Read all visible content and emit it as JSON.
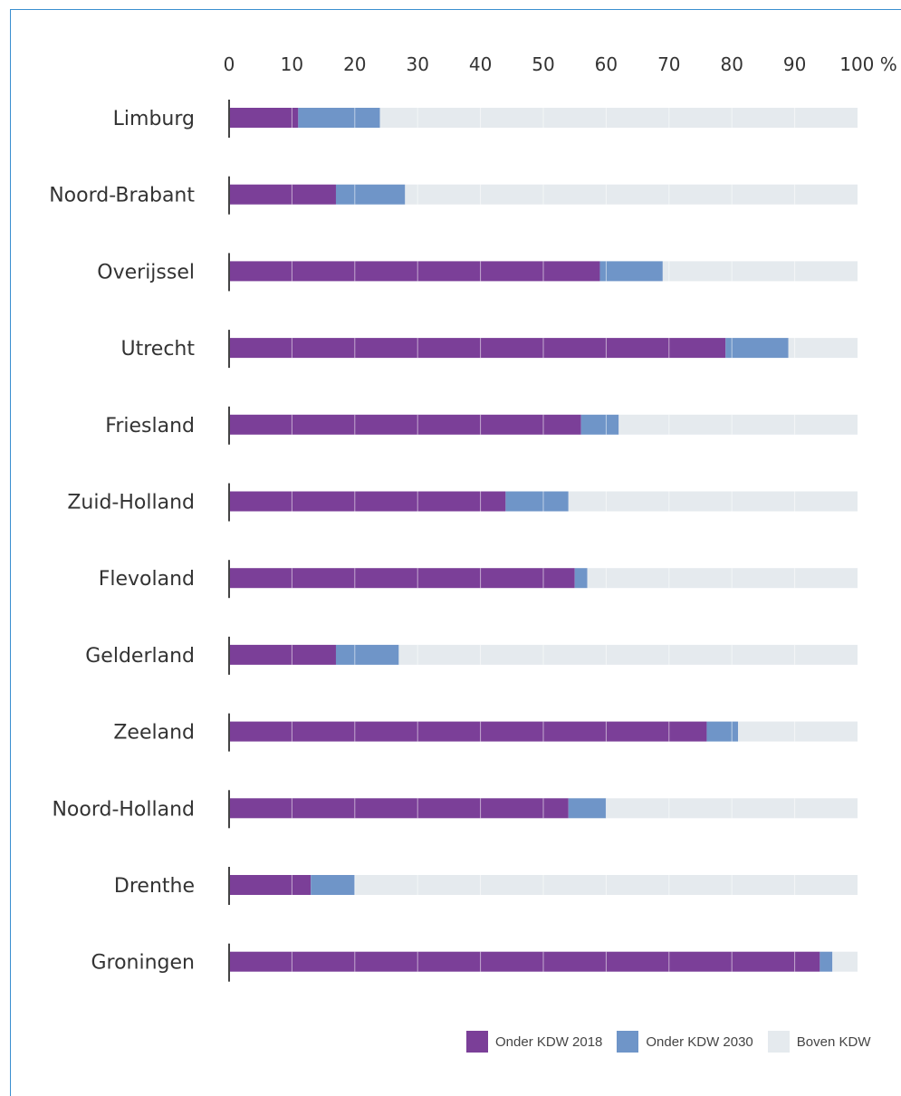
{
  "chart_data": {
    "type": "bar",
    "orientation": "horizontal",
    "stacked": true,
    "categories": [
      "Limburg",
      "Noord-Brabant",
      "Overijssel",
      "Utrecht",
      "Friesland",
      "Zuid-Holland",
      "Flevoland",
      "Gelderland",
      "Zeeland",
      "Noord-Holland",
      "Drenthe",
      "Groningen"
    ],
    "series": [
      {
        "name": "Onder KDW 2018",
        "color": "#7b3f98",
        "values": [
          11,
          17,
          59,
          79,
          56,
          44,
          55,
          17,
          76,
          54,
          13,
          94
        ]
      },
      {
        "name": "Onder KDW 2030",
        "color": "#6f95c8",
        "values": [
          13,
          11,
          10,
          10,
          6,
          10,
          2,
          10,
          5,
          6,
          7,
          2
        ]
      },
      {
        "name": "Boven KDW",
        "color": "#e5eaee",
        "values": [
          76,
          72,
          31,
          11,
          38,
          46,
          43,
          73,
          19,
          40,
          80,
          4
        ]
      }
    ],
    "x_ticks": [
      "0",
      "10",
      "20",
      "30",
      "40",
      "50",
      "60",
      "70",
      "80",
      "90",
      "100 %"
    ],
    "xlim": [
      0,
      100
    ],
    "grid": true,
    "legend_position": "bottom-right"
  }
}
